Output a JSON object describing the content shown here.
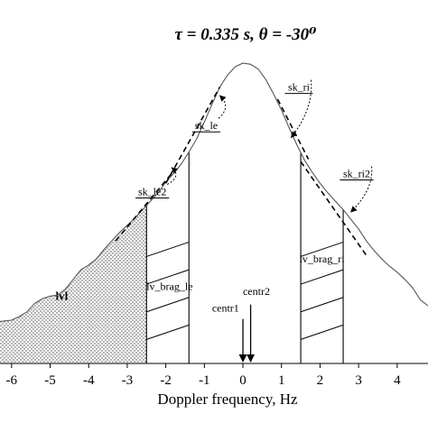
{
  "chart_data": {
    "type": "line",
    "title": "τ = 0.335 s, θ = -30⁰",
    "xlabel": "Doppler frequency, Hz",
    "ylabel": "",
    "xlim": [
      -6.3,
      4.8
    ],
    "ylim": [
      -2.0,
      24.5
    ],
    "grid": false,
    "x_ticks": [
      -6,
      -5,
      -4,
      -3,
      -2,
      -1,
      0,
      1,
      2,
      3,
      4
    ],
    "x_tick_labels": [
      "-6",
      "-5",
      "-4",
      "-3",
      "-2",
      "-1",
      "0",
      "1",
      "2",
      "3",
      "4"
    ],
    "spectrum": {
      "x": [
        -6.3,
        -6.0,
        -5.8,
        -5.6,
        -5.4,
        -5.2,
        -5.0,
        -4.8,
        -4.6,
        -4.4,
        -4.2,
        -4.0,
        -3.8,
        -3.6,
        -3.4,
        -3.2,
        -3.0,
        -2.8,
        -2.6,
        -2.4,
        -2.2,
        -2.0,
        -1.8,
        -1.6,
        -1.4,
        -1.2,
        -1.0,
        -0.8,
        -0.6,
        -0.4,
        -0.2,
        0.0,
        0.2,
        0.4,
        0.6,
        0.8,
        1.0,
        1.2,
        1.4,
        1.6,
        1.8,
        2.0,
        2.2,
        2.4,
        2.6,
        2.8,
        3.0,
        3.2,
        3.4,
        3.6,
        3.8,
        4.0,
        4.2,
        4.4,
        4.6,
        4.8
      ],
      "y": [
        1.5,
        1.6,
        1.9,
        2.3,
        3.0,
        3.4,
        3.6,
        3.7,
        4.2,
        5.0,
        5.8,
        6.2,
        6.7,
        7.5,
        8.2,
        8.9,
        9.5,
        10.1,
        10.8,
        11.5,
        12.2,
        13.1,
        13.8,
        14.6,
        15.6,
        16.7,
        18.1,
        19.6,
        21.0,
        22.0,
        22.7,
        23.0,
        22.9,
        22.5,
        21.6,
        20.4,
        19.1,
        17.6,
        16.2,
        14.9,
        13.9,
        13.0,
        12.2,
        11.5,
        10.8,
        10.0,
        9.2,
        8.2,
        7.4,
        6.7,
        6.1,
        5.6,
        5.0,
        4.3,
        3.3,
        2.8
      ]
    },
    "lvl_region": {
      "x_min": -6.3,
      "x_max": -2.5,
      "label": "lvl"
    },
    "bragg_left": {
      "x1": -2.5,
      "x2": -1.4,
      "label": "lv_brag_le"
    },
    "bragg_right": {
      "x1": 1.5,
      "x2": 2.6,
      "label": "lv_brag_ri"
    },
    "hatch_offsets": [
      0.0,
      2.3,
      4.6,
      6.9
    ],
    "hatch_rise": 1.2,
    "slope_lines": [
      {
        "label": "sk_le",
        "x": [
          -2.0,
          -0.6
        ],
        "y": [
          13.0,
          21.0
        ]
      },
      {
        "label": "sk_le2",
        "x": [
          -3.3,
          -1.8
        ],
        "y": [
          8.2,
          14.0
        ]
      },
      {
        "label": "sk_ri",
        "x": [
          0.9,
          1.7
        ],
        "y": [
          20.0,
          15.0
        ]
      },
      {
        "label": "sk_ri2",
        "x": [
          1.5,
          3.2
        ],
        "y": [
          14.8,
          7.0
        ]
      }
    ],
    "annotations": [
      {
        "name": "sk-le-label",
        "text": "sk_le",
        "x": -0.95,
        "y": 17.5,
        "tx": -0.6,
        "ty": 20.3
      },
      {
        "name": "sk-le2-label",
        "text": "sk_le2",
        "x": -2.35,
        "y": 12.0,
        "tx": -1.85,
        "ty": 14.3
      },
      {
        "name": "sk-ri-label",
        "text": "sk_ri",
        "x": 1.45,
        "y": 20.7,
        "tx": 1.25,
        "ty": 16.8
      },
      {
        "name": "sk-ri2-label",
        "text": "sk_ri2",
        "x": 2.95,
        "y": 13.5,
        "tx": 2.8,
        "ty": 10.6
      }
    ],
    "lv_brag_le_label": "lv_brag_le",
    "lv_brag_ri_label": "lv_brag_ri",
    "centroids": [
      {
        "label": "centr1",
        "x": 0.0
      },
      {
        "label": "centr2",
        "x": 0.2
      }
    ]
  }
}
